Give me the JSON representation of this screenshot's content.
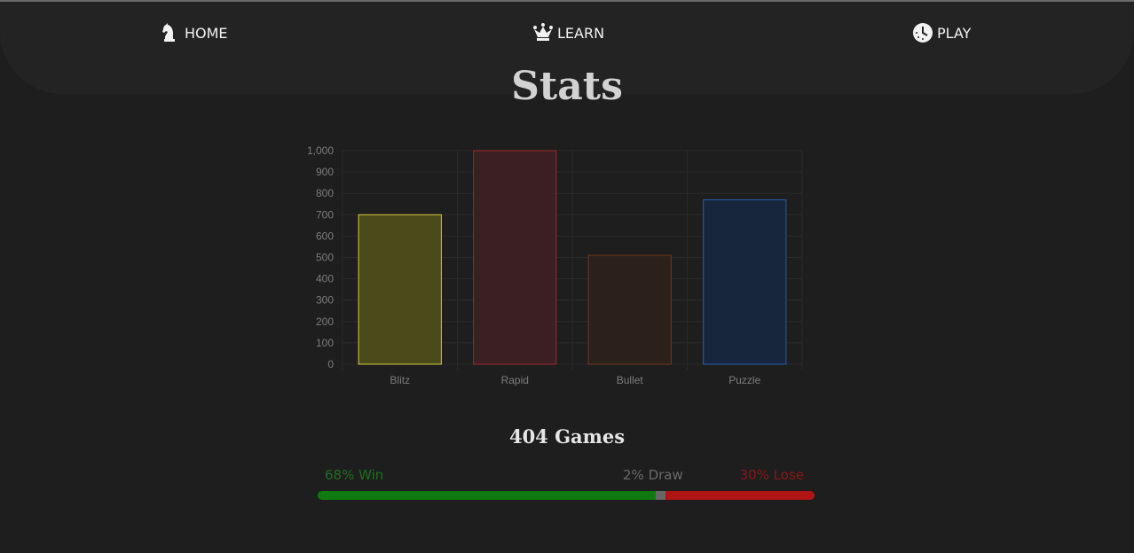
{
  "nav": {
    "items": [
      {
        "label": "HOME",
        "icon": "knight-icon"
      },
      {
        "label": "LEARN",
        "icon": "crown-icon"
      },
      {
        "label": "PLAY",
        "icon": "clock-icon"
      }
    ]
  },
  "page": {
    "title": "Stats"
  },
  "chart_data": {
    "type": "bar",
    "categories": [
      "Blitz",
      "Rapid",
      "Bullet",
      "Puzzle"
    ],
    "values": [
      700,
      1000,
      510,
      770
    ],
    "colors": {
      "fill": [
        "#4b4a1a",
        "#3c1f22",
        "#2c201b",
        "#18263d"
      ],
      "stroke": [
        "#d6c93c",
        "#9a2a2e",
        "#6b3a1c",
        "#2a5ea8"
      ]
    },
    "yticks": [
      "0",
      "100",
      "200",
      "300",
      "400",
      "500",
      "600",
      "700",
      "800",
      "900",
      "1,000"
    ],
    "ylim": [
      0,
      1000
    ],
    "grid": true,
    "title": "",
    "xlabel": "",
    "ylabel": ""
  },
  "summary": {
    "games": "404 Games",
    "win_label": "68% Win",
    "draw_label": "2% Draw",
    "lose_label": "30% Lose",
    "win_pct": 68,
    "draw_pct": 2,
    "lose_pct": 30,
    "colors": {
      "win": "#0f7a0f",
      "draw": "#666666",
      "lose": "#b01414"
    }
  }
}
